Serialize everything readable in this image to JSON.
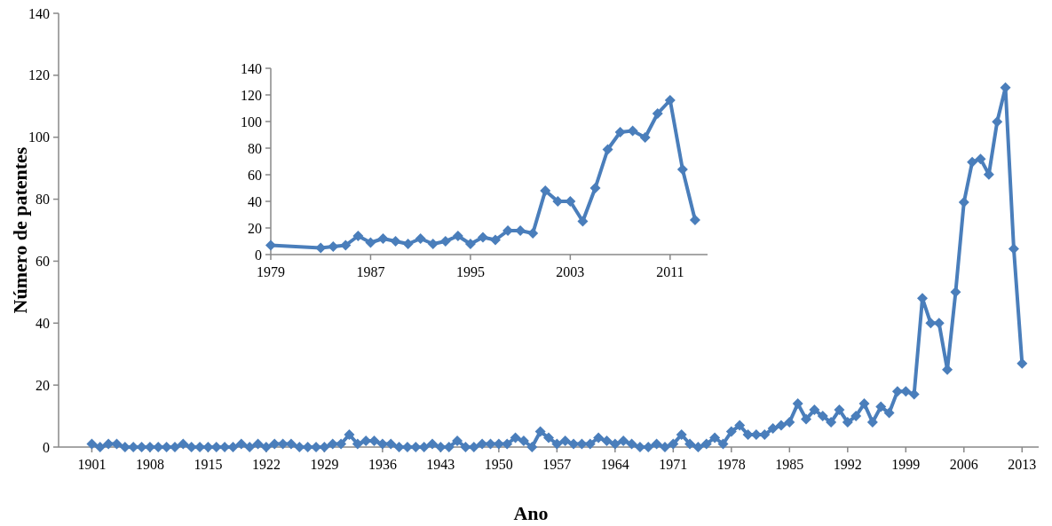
{
  "chart_data": [
    {
      "type": "line",
      "xlabel": "Ano",
      "ylabel": "Número de patentes",
      "marker": "diamond",
      "grid": false,
      "xlim": [
        1897,
        2015
      ],
      "xticks": [
        1901,
        1908,
        1915,
        1922,
        1929,
        1936,
        1943,
        1950,
        1957,
        1964,
        1971,
        1978,
        1985,
        1992,
        1999,
        2006,
        2013
      ],
      "ylim": [
        0,
        140
      ],
      "yticks": [
        0,
        20,
        40,
        60,
        80,
        100,
        120,
        140
      ],
      "x": [
        1901,
        1902,
        1903,
        1904,
        1905,
        1906,
        1907,
        1908,
        1909,
        1910,
        1911,
        1912,
        1913,
        1914,
        1915,
        1916,
        1917,
        1918,
        1919,
        1920,
        1921,
        1922,
        1923,
        1924,
        1925,
        1926,
        1927,
        1928,
        1929,
        1930,
        1931,
        1932,
        1933,
        1934,
        1935,
        1936,
        1937,
        1938,
        1939,
        1940,
        1941,
        1942,
        1943,
        1944,
        1945,
        1946,
        1947,
        1948,
        1949,
        1950,
        1951,
        1952,
        1953,
        1954,
        1955,
        1956,
        1957,
        1958,
        1959,
        1960,
        1961,
        1962,
        1963,
        1964,
        1965,
        1966,
        1967,
        1968,
        1969,
        1970,
        1971,
        1972,
        1973,
        1974,
        1975,
        1976,
        1977,
        1978,
        1979,
        1980,
        1981,
        1982,
        1983,
        1984,
        1985,
        1986,
        1987,
        1988,
        1989,
        1990,
        1991,
        1992,
        1993,
        1994,
        1995,
        1996,
        1997,
        1998,
        1999,
        2000,
        2001,
        2002,
        2003,
        2004,
        2005,
        2006,
        2007,
        2008,
        2009,
        2010,
        2011,
        2012,
        2013
      ],
      "series": [
        {
          "color": "#4a7ebb",
          "values": [
            1,
            0,
            1,
            1,
            0,
            0,
            0,
            0,
            0,
            0,
            0,
            1,
            0,
            0,
            0,
            0,
            0,
            0,
            1,
            0,
            1,
            0,
            1,
            1,
            1,
            0,
            0,
            0,
            0,
            1,
            1,
            4,
            1,
            2,
            2,
            1,
            1,
            0,
            0,
            0,
            0,
            1,
            0,
            0,
            2,
            0,
            0,
            1,
            1,
            1,
            1,
            3,
            2,
            0,
            5,
            3,
            1,
            2,
            1,
            1,
            1,
            3,
            2,
            1,
            2,
            1,
            0,
            0,
            1,
            0,
            1,
            4,
            1,
            0,
            1,
            3,
            1,
            5,
            7,
            4,
            4,
            4,
            6,
            7,
            8,
            14,
            9,
            12,
            10,
            8,
            12,
            8,
            10,
            14,
            8,
            13,
            11,
            18,
            18,
            17,
            48,
            40,
            40,
            25,
            50,
            79,
            92,
            93,
            88,
            105,
            116,
            64,
            27
          ]
        }
      ]
    },
    {
      "type": "line",
      "marker": "diamond",
      "grid": false,
      "xlim": [
        1979,
        2014
      ],
      "xticks": [
        1979,
        1987,
        1995,
        2003,
        2011
      ],
      "ylim": [
        0,
        140
      ],
      "yticks": [
        0,
        20,
        40,
        60,
        80,
        100,
        120,
        140
      ],
      "x": [
        1979,
        1983,
        1984,
        1985,
        1986,
        1987,
        1988,
        1989,
        1990,
        1991,
        1992,
        1993,
        1994,
        1995,
        1996,
        1997,
        1998,
        1999,
        2000,
        2001,
        2002,
        2003,
        2004,
        2005,
        2006,
        2007,
        2008,
        2009,
        2010,
        2011,
        2012,
        2013
      ],
      "series": [
        {
          "color": "#4a7ebb",
          "values": [
            7,
            5,
            6,
            7,
            14,
            9,
            12,
            10,
            8,
            12,
            8,
            10,
            14,
            8,
            13,
            11,
            18,
            18,
            16,
            48,
            40,
            40,
            25,
            50,
            79,
            92,
            93,
            88,
            106,
            116,
            64,
            26
          ]
        }
      ]
    }
  ]
}
